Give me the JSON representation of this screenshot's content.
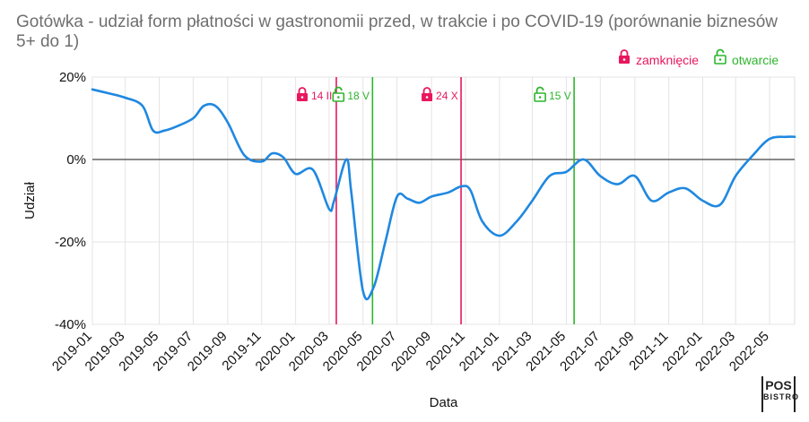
{
  "title": "Gotówka - udział form płatności w gastronomii przed, w trakcie i po COVID-19 (porównanie biznesów 5+ do 1)",
  "legend": {
    "closing_label": "zamknięcie",
    "opening_label": "otwarcie",
    "closing_color": "#e8175d",
    "opening_color": "#2db52d",
    "closing_icon": "lock-closed-icon",
    "opening_icon": "lock-open-icon"
  },
  "logo": {
    "line1": "POS",
    "line2": "BISTRO"
  },
  "chart_data": {
    "type": "line",
    "title": "Gotówka - udział form płatności w gastronomii przed, w trakcie i po COVID-19 (porównanie biznesów 5+ do 1)",
    "xlabel": "Data",
    "ylabel": "Udział",
    "x_tick_labels": [
      "2019-01",
      "2019-03",
      "2019-05",
      "2019-07",
      "2019-09",
      "2019-11",
      "2020-01",
      "2020-03",
      "2020-05",
      "2020-07",
      "2020-09",
      "2020-11",
      "2021-01",
      "2021-03",
      "2021-05",
      "2021-07",
      "2021-09",
      "2021-11",
      "2022-01",
      "2022-03",
      "2022-05"
    ],
    "y_tick_labels": [
      "20%",
      "0%",
      "-20%",
      "-40%"
    ],
    "y_ticks": [
      20,
      0,
      -20,
      -40
    ],
    "ylim": [
      -40,
      20
    ],
    "xlim": [
      "2019-01-01",
      "2022-06-15"
    ],
    "grid": true,
    "line_color": "#1f88e0",
    "series": [
      {
        "name": "",
        "x": [
          "2019-01-01",
          "2019-02-01",
          "2019-03-01",
          "2019-04-01",
          "2019-04-20",
          "2019-05-10",
          "2019-06-01",
          "2019-07-01",
          "2019-07-20",
          "2019-08-10",
          "2019-09-01",
          "2019-10-01",
          "2019-11-01",
          "2019-11-20",
          "2019-12-10",
          "2020-01-01",
          "2020-02-01",
          "2020-03-01",
          "2020-03-10",
          "2020-04-01",
          "2020-04-10",
          "2020-05-01",
          "2020-05-20",
          "2020-06-10",
          "2020-07-01",
          "2020-07-20",
          "2020-08-10",
          "2020-09-01",
          "2020-10-01",
          "2020-10-25",
          "2020-11-10",
          "2020-12-01",
          "2021-01-01",
          "2021-02-01",
          "2021-03-01",
          "2021-04-01",
          "2021-05-01",
          "2021-06-01",
          "2021-07-01",
          "2021-08-01",
          "2021-09-01",
          "2021-10-01",
          "2021-11-01",
          "2021-12-01",
          "2022-01-01",
          "2022-02-01",
          "2022-03-01",
          "2022-04-01",
          "2022-05-01",
          "2022-06-01",
          "2022-06-15"
        ],
        "values": [
          17,
          16,
          15,
          13,
          7,
          7,
          8,
          10,
          13,
          13,
          9,
          1,
          -0.5,
          1.5,
          0.5,
          -3.5,
          -2.5,
          -12,
          -10,
          0,
          -8,
          -32,
          -31,
          -20,
          -9,
          -9.5,
          -10.5,
          -9,
          -8,
          -6.5,
          -7.5,
          -15,
          -18.5,
          -15,
          -10,
          -4,
          -3,
          0,
          -4,
          -6,
          -4,
          -10,
          -8,
          -7,
          -10,
          -11,
          -4,
          1,
          5,
          5.5,
          5.5
        ]
      }
    ],
    "events": [
      {
        "label": "14 III",
        "date": "2020-03-14",
        "type": "zamknięcie"
      },
      {
        "label": "18 V",
        "date": "2020-05-18",
        "type": "otwarcie"
      },
      {
        "label": "24 X",
        "date": "2020-10-24",
        "type": "zamknięcie"
      },
      {
        "label": "15 V",
        "date": "2021-05-15",
        "type": "otwarcie"
      }
    ]
  }
}
